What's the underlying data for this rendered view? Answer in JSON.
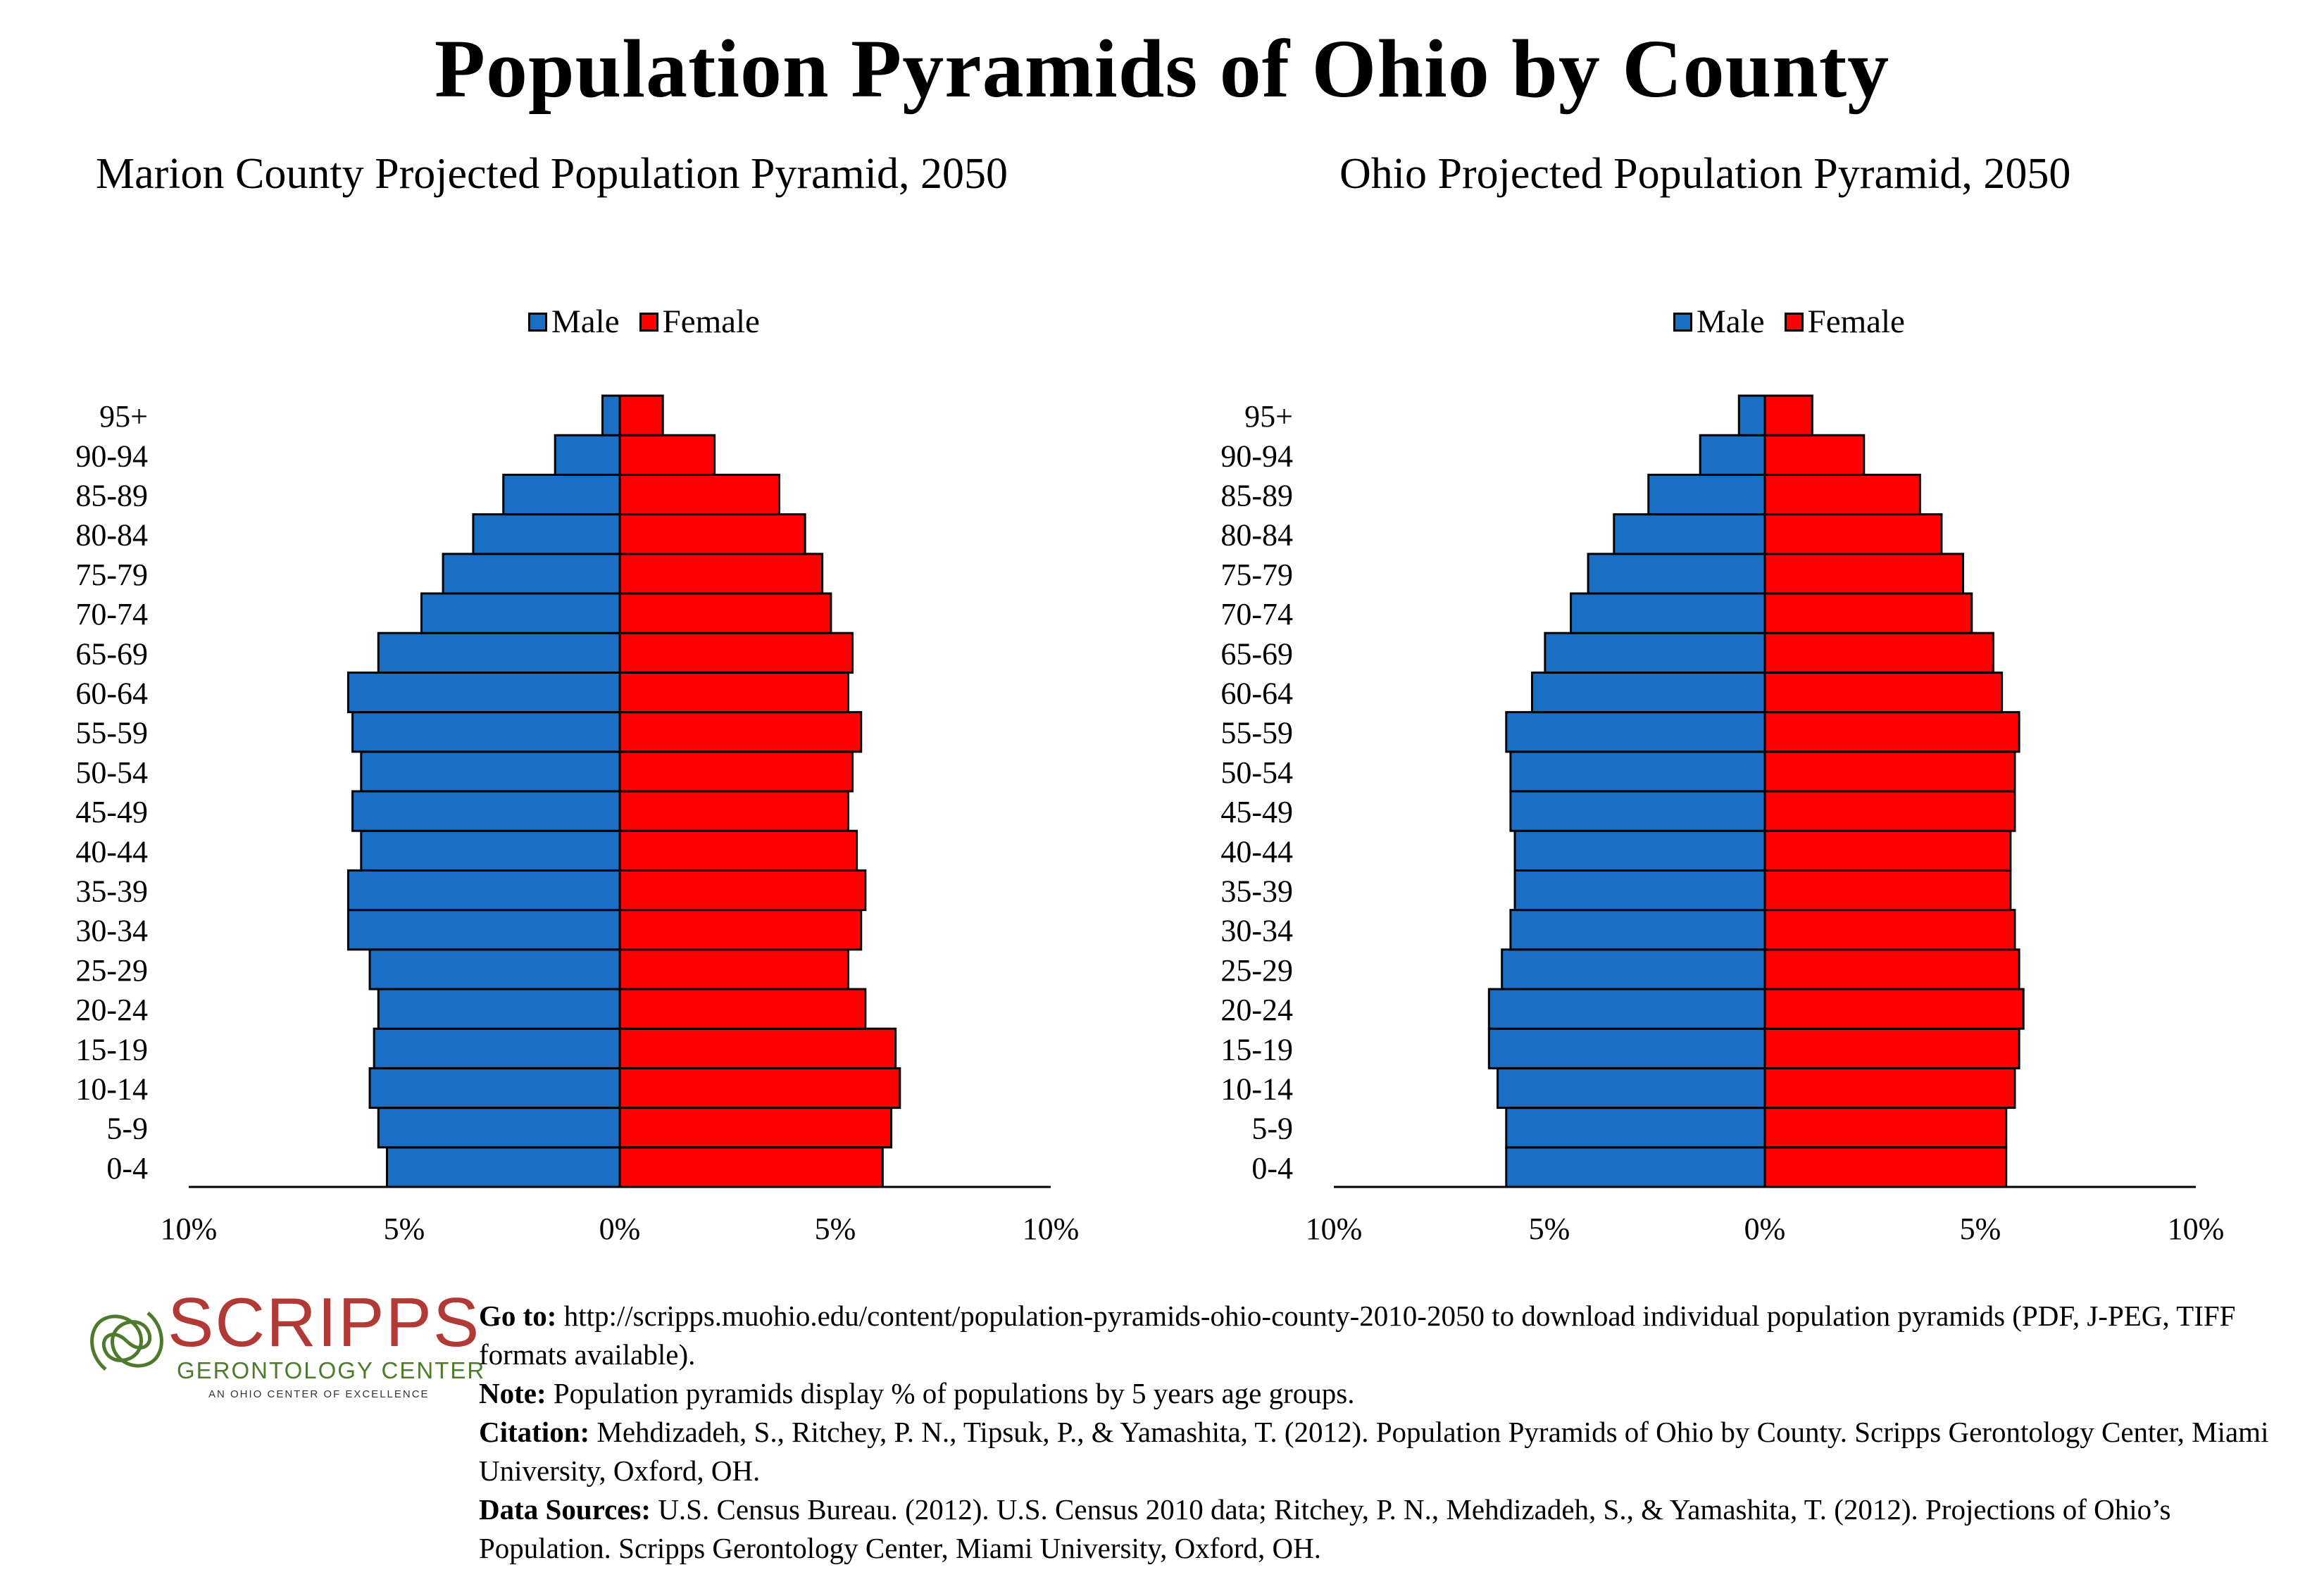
{
  "header": {
    "title": "Population Pyramids of Ohio by County"
  },
  "legend": {
    "male": "Male",
    "female": "Female"
  },
  "colors": {
    "male": "#1a6fc4",
    "female": "#ff0000"
  },
  "chart_data": [
    {
      "type": "bar",
      "orientation": "horizontal-pyramid",
      "title": "Marion County Projected Population Pyramid, 2050",
      "categories": [
        "0-4",
        "5-9",
        "10-14",
        "15-19",
        "20-24",
        "25-29",
        "30-34",
        "35-39",
        "40-44",
        "45-49",
        "50-54",
        "55-59",
        "60-64",
        "65-69",
        "70-74",
        "75-79",
        "80-84",
        "85-89",
        "90-94",
        "95+"
      ],
      "series": [
        {
          "name": "Male",
          "values": [
            5.4,
            5.6,
            5.8,
            5.7,
            5.6,
            5.8,
            6.3,
            6.3,
            6.0,
            6.2,
            6.0,
            6.2,
            6.3,
            5.6,
            4.6,
            4.1,
            3.4,
            2.7,
            1.5,
            0.4
          ]
        },
        {
          "name": "Female",
          "values": [
            6.1,
            6.3,
            6.5,
            6.4,
            5.7,
            5.3,
            5.6,
            5.7,
            5.5,
            5.3,
            5.4,
            5.6,
            5.3,
            5.4,
            4.9,
            4.7,
            4.3,
            3.7,
            2.2,
            1.0
          ]
        }
      ],
      "xlim": [
        -10,
        10
      ],
      "ticks": [
        "10%",
        "5%",
        "0%",
        "5%",
        "10%"
      ],
      "legend_position": "top"
    },
    {
      "type": "bar",
      "orientation": "horizontal-pyramid",
      "title": "Ohio Projected Population Pyramid, 2050",
      "categories": [
        "0-4",
        "5-9",
        "10-14",
        "15-19",
        "20-24",
        "25-29",
        "30-34",
        "35-39",
        "40-44",
        "45-49",
        "50-54",
        "55-59",
        "60-64",
        "65-69",
        "70-74",
        "75-79",
        "80-84",
        "85-89",
        "90-94",
        "95+"
      ],
      "series": [
        {
          "name": "Male",
          "values": [
            6.0,
            6.0,
            6.2,
            6.4,
            6.4,
            6.1,
            5.9,
            5.8,
            5.8,
            5.9,
            5.9,
            6.0,
            5.4,
            5.1,
            4.5,
            4.1,
            3.5,
            2.7,
            1.5,
            0.6
          ]
        },
        {
          "name": "Female",
          "values": [
            5.6,
            5.6,
            5.8,
            5.9,
            6.0,
            5.9,
            5.8,
            5.7,
            5.7,
            5.8,
            5.8,
            5.9,
            5.5,
            5.3,
            4.8,
            4.6,
            4.1,
            3.6,
            2.3,
            1.1
          ]
        }
      ],
      "xlim": [
        -10,
        10
      ],
      "ticks": [
        "10%",
        "5%",
        "0%",
        "5%",
        "10%"
      ],
      "legend_position": "top"
    }
  ],
  "logo": {
    "name": "SCRIPPS",
    "subtitle": "GERONTOLOGY CENTER",
    "tagline": "AN OHIO CENTER OF EXCELLENCE"
  },
  "footer": {
    "goto_label": "Go to:",
    "goto_text": " http://scripps.muohio.edu/content/population-pyramids-ohio-county-2010-2050 to download individual population pyramids (PDF, J-PEG, TIFF formats available).",
    "note_label": "Note:",
    "note_text": " Population pyramids display % of populations by 5 years age groups.",
    "citation_label": "Citation:",
    "citation_text": " Mehdizadeh, S., Ritchey, P. N., Tipsuk, P., & Yamashita, T. (2012). Population Pyramids of Ohio by County. Scripps Gerontology Center, Miami University, Oxford, OH.",
    "sources_label": "Data Sources:",
    "sources_text": " U.S. Census Bureau. (2012). U.S. Census 2010 data; Ritchey, P. N., Mehdizadeh, S., & Yamashita, T. (2012). Projections of Ohio’s Population. Scripps Gerontology Center, Miami University, Oxford, OH."
  }
}
